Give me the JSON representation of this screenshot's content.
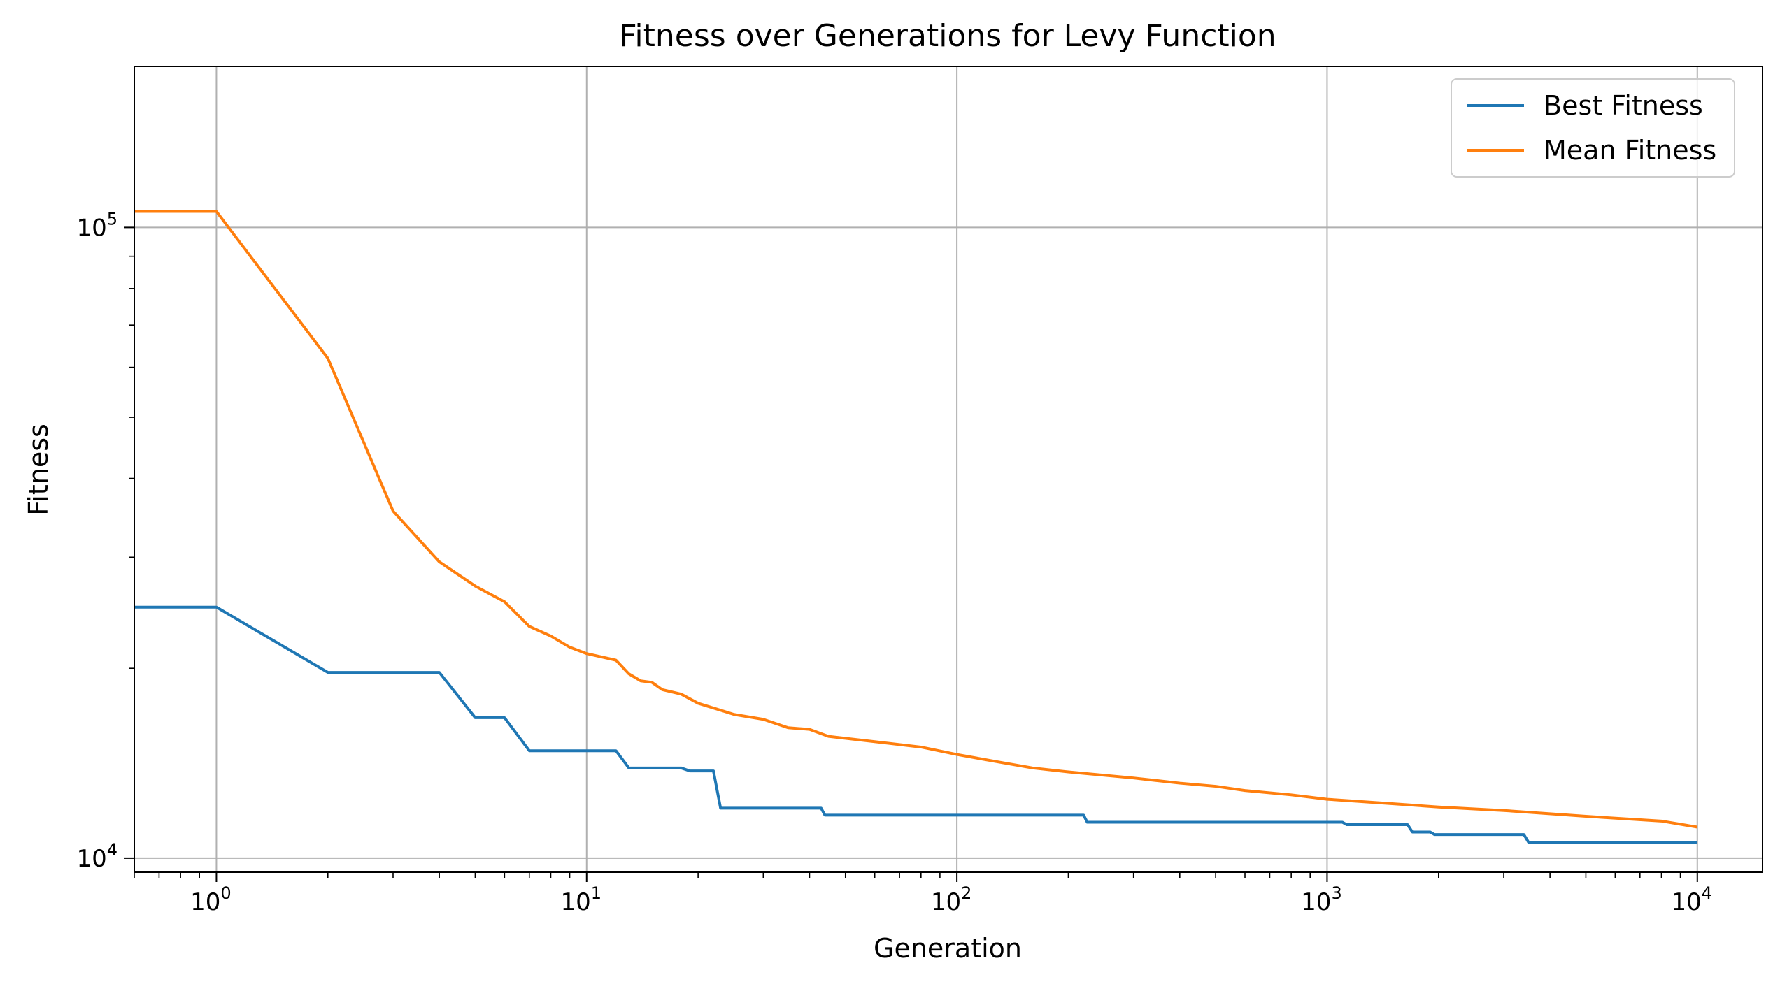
{
  "chart_data": {
    "type": "line",
    "title": "Fitness over Generations for Levy Function",
    "xlabel": "Generation",
    "ylabel": "Fitness",
    "xscale": "log",
    "yscale": "log",
    "xlim": [
      0.6,
      15000
    ],
    "ylim": [
      9500,
      180000
    ],
    "grid": true,
    "legend_position": "top-right",
    "xticks": [
      {
        "value": 1,
        "base": "10",
        "exp": "0"
      },
      {
        "value": 10,
        "base": "10",
        "exp": "1"
      },
      {
        "value": 100,
        "base": "10",
        "exp": "2"
      },
      {
        "value": 1000,
        "base": "10",
        "exp": "3"
      },
      {
        "value": 10000,
        "base": "10",
        "exp": "4"
      }
    ],
    "yticks": [
      {
        "value": 10000,
        "base": "10",
        "exp": "4"
      },
      {
        "value": 100000,
        "base": "10",
        "exp": "5"
      }
    ],
    "series": [
      {
        "name": "Best Fitness",
        "color": "#1f77b4",
        "points": [
          [
            0.6,
            25000
          ],
          [
            1,
            25000
          ],
          [
            2,
            19700
          ],
          [
            4,
            19700
          ],
          [
            5,
            16700
          ],
          [
            6,
            16700
          ],
          [
            7,
            14800
          ],
          [
            12,
            14800
          ],
          [
            13,
            13900
          ],
          [
            18,
            13900
          ],
          [
            19,
            13750
          ],
          [
            22,
            13750
          ],
          [
            23,
            12000
          ],
          [
            43,
            12000
          ],
          [
            44,
            11700
          ],
          [
            220,
            11700
          ],
          [
            225,
            11400
          ],
          [
            1100,
            11400
          ],
          [
            1130,
            11300
          ],
          [
            1650,
            11300
          ],
          [
            1700,
            11000
          ],
          [
            1900,
            11000
          ],
          [
            1950,
            10900
          ],
          [
            3400,
            10900
          ],
          [
            3500,
            10600
          ],
          [
            10000,
            10600
          ]
        ]
      },
      {
        "name": "Mean Fitness",
        "color": "#ff7f0e",
        "points": [
          [
            0.6,
            106000
          ],
          [
            1,
            106000
          ],
          [
            2,
            62000
          ],
          [
            3,
            35500
          ],
          [
            4,
            29500
          ],
          [
            5,
            27000
          ],
          [
            6,
            25500
          ],
          [
            7,
            23300
          ],
          [
            8,
            22500
          ],
          [
            9,
            21600
          ],
          [
            10,
            21100
          ],
          [
            12,
            20600
          ],
          [
            13,
            19600
          ],
          [
            14,
            19100
          ],
          [
            15,
            19000
          ],
          [
            16,
            18500
          ],
          [
            18,
            18200
          ],
          [
            20,
            17600
          ],
          [
            22,
            17300
          ],
          [
            25,
            16900
          ],
          [
            30,
            16600
          ],
          [
            35,
            16100
          ],
          [
            40,
            16000
          ],
          [
            45,
            15600
          ],
          [
            60,
            15300
          ],
          [
            80,
            15000
          ],
          [
            100,
            14600
          ],
          [
            130,
            14200
          ],
          [
            160,
            13900
          ],
          [
            200,
            13700
          ],
          [
            300,
            13400
          ],
          [
            400,
            13150
          ],
          [
            500,
            13000
          ],
          [
            600,
            12800
          ],
          [
            800,
            12600
          ],
          [
            1000,
            12400
          ],
          [
            1500,
            12200
          ],
          [
            2000,
            12050
          ],
          [
            3000,
            11900
          ],
          [
            5000,
            11650
          ],
          [
            8000,
            11450
          ],
          [
            10000,
            11200
          ]
        ]
      }
    ]
  }
}
